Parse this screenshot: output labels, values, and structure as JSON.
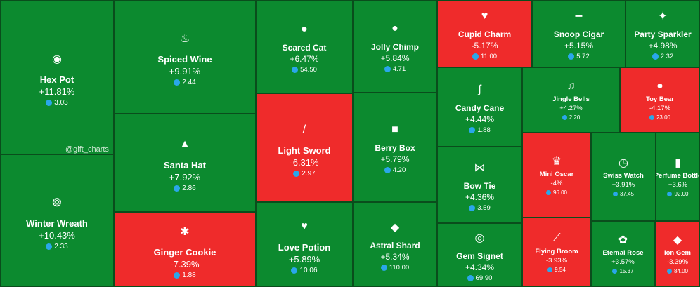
{
  "chart_data": {
    "type": "treemap",
    "watermark": "@gift_charts",
    "colors": {
      "up": "#0c8a2f",
      "down": "#ef2b2b",
      "price_icon": "#2aa7ea"
    },
    "items": [
      {
        "name": "Hex Pot",
        "change": "+11.81%",
        "price": "3.03",
        "icon": "cauldron-icon"
      },
      {
        "name": "Winter Wreath",
        "change": "+10.43%",
        "price": "2.33",
        "icon": "wreath-icon"
      },
      {
        "name": "Spiced Wine",
        "change": "+9.91%",
        "price": "2.44",
        "icon": "wine-icon"
      },
      {
        "name": "Santa Hat",
        "change": "+7.92%",
        "price": "2.86",
        "icon": "santa-hat-icon"
      },
      {
        "name": "Ginger Cookie",
        "change": "-7.39%",
        "price": "1.88",
        "icon": "cookie-icon"
      },
      {
        "name": "Scared Cat",
        "change": "+6.47%",
        "price": "54.50",
        "icon": "cat-icon"
      },
      {
        "name": "Light Sword",
        "change": "-6.31%",
        "price": "2.97",
        "icon": "sword-icon"
      },
      {
        "name": "Love Potion",
        "change": "+5.89%",
        "price": "10.06",
        "icon": "potion-icon"
      },
      {
        "name": "Jolly Chimp",
        "change": "+5.84%",
        "price": "4.71",
        "icon": "monkey-icon"
      },
      {
        "name": "Berry Box",
        "change": "+5.79%",
        "price": "4.20",
        "icon": "box-icon"
      },
      {
        "name": "Astral Shard",
        "change": "+5.34%",
        "price": "110.00",
        "icon": "crystal-icon"
      },
      {
        "name": "Cupid Charm",
        "change": "-5.17%",
        "price": "11.00",
        "icon": "heart-lock-icon"
      },
      {
        "name": "Snoop Cigar",
        "change": "+5.15%",
        "price": "5.72",
        "icon": "cigar-icon"
      },
      {
        "name": "Party Sparkler",
        "change": "+4.98%",
        "price": "2.32",
        "icon": "sparkler-icon"
      },
      {
        "name": "Candy Cane",
        "change": "+4.44%",
        "price": "1.88",
        "icon": "candy-cane-icon"
      },
      {
        "name": "Jingle Bells",
        "change": "+4.27%",
        "price": "2.20",
        "icon": "bells-icon"
      },
      {
        "name": "Toy Bear",
        "change": "-4.17%",
        "price": "23.00",
        "icon": "teddy-bear-icon"
      },
      {
        "name": "Bow Tie",
        "change": "+4.36%",
        "price": "3.59",
        "icon": "bow-tie-icon"
      },
      {
        "name": "Gem Signet",
        "change": "+4.34%",
        "price": "69.90",
        "icon": "ring-icon"
      },
      {
        "name": "Mini Oscar",
        "change": "-4%",
        "price": "96.00",
        "icon": "trophy-icon"
      },
      {
        "name": "Flying Broom",
        "change": "-3.93%",
        "price": "9.54",
        "icon": "broom-icon"
      },
      {
        "name": "Swiss Watch",
        "change": "+3.91%",
        "price": "37.45",
        "icon": "watch-icon"
      },
      {
        "name": "Perfume Bottle",
        "change": "+3.6%",
        "price": "92.00",
        "icon": "perfume-icon"
      },
      {
        "name": "Eternal Rose",
        "change": "+3.57%",
        "price": "15.37",
        "icon": "rose-icon"
      },
      {
        "name": "Ion Gem",
        "change": "-3.39%",
        "price": "84.00",
        "icon": "gem-icon"
      }
    ]
  }
}
